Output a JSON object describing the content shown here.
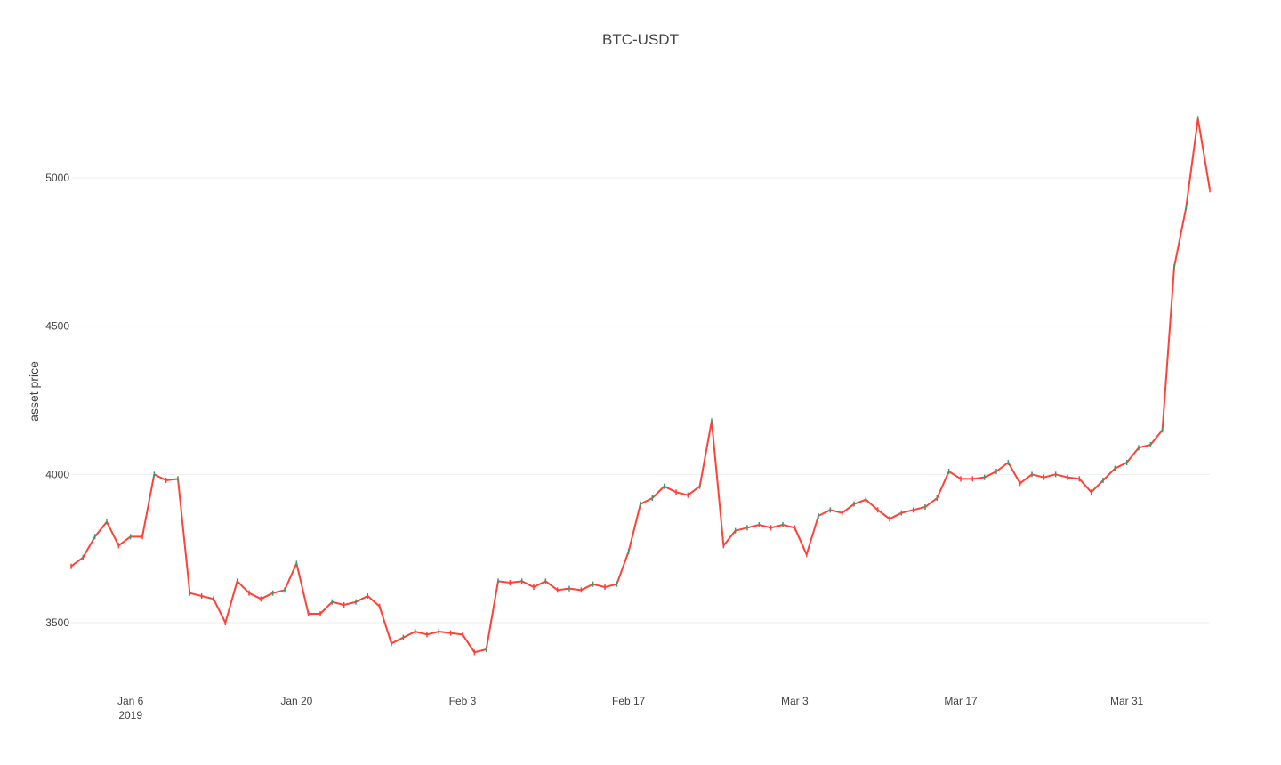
{
  "chart_data": {
    "type": "line",
    "title": "BTC-USDT",
    "xlabel": "",
    "ylabel": "asset price",
    "grid": "horizontal",
    "legend": "none",
    "colors": {
      "line": "#ff4136",
      "up_segment": "#3d9970"
    },
    "x_range": [
      "2019-01-01",
      "2019-04-07"
    ],
    "ylim": [
      3320,
      5300
    ],
    "y_ticks": [
      3500,
      4000,
      4500,
      5000
    ],
    "y_tick_labels": [
      "3500",
      "4000",
      "4500",
      "5000"
    ],
    "x_ticks": [
      "2019-01-06",
      "2019-01-20",
      "2019-02-03",
      "2019-02-17",
      "2019-03-03",
      "2019-03-17",
      "2019-03-31"
    ],
    "x_tick_labels": [
      "Jan 6",
      "Jan 20",
      "Feb 3",
      "Feb 17",
      "Mar 3",
      "Mar 17",
      "Mar 31"
    ],
    "x_tick_sublabel": "2019",
    "series": [
      {
        "x": [
          "2019-01-01",
          "2019-01-02",
          "2019-01-03",
          "2019-01-04",
          "2019-01-05",
          "2019-01-06",
          "2019-01-07",
          "2019-01-08",
          "2019-01-09",
          "2019-01-10",
          "2019-01-11",
          "2019-01-12",
          "2019-01-13",
          "2019-01-14",
          "2019-01-15",
          "2019-01-16",
          "2019-01-17",
          "2019-01-18",
          "2019-01-19",
          "2019-01-20",
          "2019-01-21",
          "2019-01-22",
          "2019-01-23",
          "2019-01-24",
          "2019-01-25",
          "2019-01-26",
          "2019-01-27",
          "2019-01-28",
          "2019-01-29",
          "2019-01-30",
          "2019-01-31",
          "2019-02-01",
          "2019-02-02",
          "2019-02-03",
          "2019-02-04",
          "2019-02-05",
          "2019-02-06",
          "2019-02-07",
          "2019-02-08",
          "2019-02-09",
          "2019-02-10",
          "2019-02-11",
          "2019-02-12",
          "2019-02-13",
          "2019-02-14",
          "2019-02-15",
          "2019-02-16",
          "2019-02-17",
          "2019-02-18",
          "2019-02-19",
          "2019-02-20",
          "2019-02-21",
          "2019-02-22",
          "2019-02-23",
          "2019-02-24",
          "2019-02-25",
          "2019-02-26",
          "2019-02-27",
          "2019-02-28",
          "2019-03-01",
          "2019-03-02",
          "2019-03-03",
          "2019-03-04",
          "2019-03-05",
          "2019-03-06",
          "2019-03-07",
          "2019-03-08",
          "2019-03-09",
          "2019-03-10",
          "2019-03-11",
          "2019-03-12",
          "2019-03-13",
          "2019-03-14",
          "2019-03-15",
          "2019-03-16",
          "2019-03-17",
          "2019-03-18",
          "2019-03-19",
          "2019-03-20",
          "2019-03-21",
          "2019-03-22",
          "2019-03-23",
          "2019-03-24",
          "2019-03-25",
          "2019-03-26",
          "2019-03-27",
          "2019-03-28",
          "2019-03-29",
          "2019-03-30",
          "2019-03-31",
          "2019-04-01",
          "2019-04-02",
          "2019-04-03",
          "2019-04-04",
          "2019-04-05",
          "2019-04-06",
          "2019-04-07"
        ],
        "y": [
          3690,
          3720,
          3790,
          3840,
          3760,
          3790,
          3790,
          4000,
          3980,
          3985,
          3600,
          3590,
          3580,
          3500,
          3640,
          3600,
          3580,
          3600,
          3610,
          3700,
          3530,
          3530,
          3570,
          3560,
          3570,
          3590,
          3555,
          3430,
          3450,
          3470,
          3460,
          3470,
          3465,
          3460,
          3400,
          3410,
          3640,
          3635,
          3640,
          3620,
          3640,
          3610,
          3615,
          3610,
          3630,
          3620,
          3630,
          3740,
          3900,
          3920,
          3960,
          3940,
          3930,
          3960,
          4180,
          3760,
          3810,
          3820,
          3830,
          3820,
          3830,
          3820,
          3730,
          3860,
          3880,
          3870,
          3900,
          3915,
          3880,
          3850,
          3870,
          3880,
          3890,
          3920,
          4010,
          3985,
          3985,
          3990,
          4010,
          4040,
          3970,
          4000,
          3990,
          4000,
          3990,
          3985,
          3940,
          3980,
          4020,
          4040,
          4090,
          4100,
          4150,
          4700,
          4900,
          5200,
          4960
        ]
      }
    ]
  }
}
